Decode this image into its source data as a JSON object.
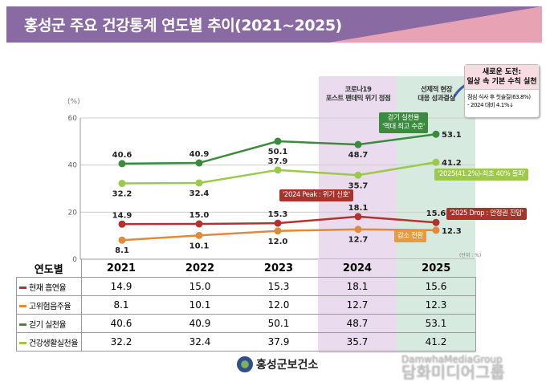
{
  "title": "홍성군 주요 건강통계 연도별 추이(2021~2025)",
  "chart_data": {
    "type": "line",
    "title": "홍성군 주요 건강통계 연도별 추이(2021~2025)",
    "ylabel": "(%)",
    "unit_note": "(단위 : %)",
    "ylim": [
      0,
      60
    ],
    "yticks": [
      0,
      20,
      40,
      60
    ],
    "grid": true,
    "categories": [
      "2021",
      "2022",
      "2023",
      "2024",
      "2025"
    ],
    "series": [
      {
        "name": "현재 흡연율",
        "color": "#b2322f",
        "values": [
          14.9,
          15.0,
          15.3,
          18.1,
          15.6
        ]
      },
      {
        "name": "고위험음주율",
        "color": "#e08a3c",
        "values": [
          8.1,
          10.1,
          12.0,
          12.7,
          12.3
        ]
      },
      {
        "name": "걷기 실천율",
        "color": "#3c8a3f",
        "values": [
          40.6,
          40.9,
          50.1,
          48.7,
          53.1
        ]
      },
      {
        "name": "건강생활실천율",
        "color": "#9cc94a",
        "values": [
          32.2,
          32.4,
          37.9,
          35.7,
          41.2
        ]
      }
    ],
    "highlights": [
      {
        "category": "2024",
        "label_line1": "코로나19",
        "label_line2": "포스트 팬데믹 위기 정점",
        "color": "#eadcee"
      },
      {
        "category": "2025",
        "label_line1": "선제적 현장",
        "label_line2": "대응 성과결실",
        "color": "#d7eadf"
      }
    ],
    "annotations": [
      {
        "text_line1": "걷기 실천율",
        "text_line2": "'역대 최고 수준'",
        "color": "#3c8a3f"
      },
      {
        "text": "'2025(41.2%)-최초 40% 돌파'",
        "color": "#9cc94a"
      },
      {
        "text": "'2024 Peak : 위기 신호'",
        "color": "#a8322c"
      },
      {
        "text": "'2025 Drop : 안정권 진입'",
        "color": "#a8322c"
      },
      {
        "text": "감소 전환",
        "color": "#e89a3e"
      }
    ],
    "table_header": "연도별"
  },
  "infobox": {
    "title_line1": "새로운 도전:",
    "title_line2": "일상 속 기본 수칙 실천",
    "body_line1": "점심 식사 후 칫솔질(63.8%)",
    "body_line2": "- 2024 대비 4.1%↓"
  },
  "footer": {
    "org": "홍성군보건소"
  },
  "watermark": {
    "line1": "DamwhaMediaGroup",
    "line2": "담화미디어그룹"
  }
}
